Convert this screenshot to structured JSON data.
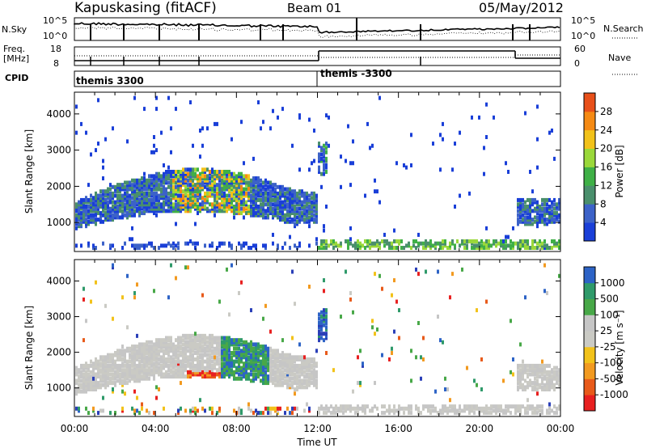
{
  "header": {
    "station": "Kapuskasing (fitACF)",
    "beam": "Beam 01",
    "date": "05/May/2012"
  },
  "top_panels": {
    "nsky_label": "N.Sky",
    "nsky_ticks": [
      "10^5",
      "10^0"
    ],
    "nsearch_label": "N.Search",
    "nsearch_ticks": [
      "10^5",
      "10^0"
    ],
    "freq_label_line1": "Freq.",
    "freq_label_line2": "[MHz]",
    "freq_ticks": [
      "18",
      "8"
    ],
    "nave_label": "Nave",
    "nave_ticks": [
      "60",
      "0"
    ],
    "cpid_label": "CPID",
    "cpid_segments": [
      "themis 3300",
      "themis -3300"
    ]
  },
  "colors": {
    "power": [
      "#1a3fd8",
      "#3c62c8",
      "#4a8f6c",
      "#3fb046",
      "#9ad83a",
      "#f2c21a",
      "#f58a14",
      "#e8501a",
      "#e02020"
    ],
    "velocity": [
      "#e82020",
      "#e85a1a",
      "#f29a20",
      "#f2c21a",
      "#cacac4",
      "#c6c6c6",
      "#48a848",
      "#2f9a6a",
      "#2d63c6",
      "#2a3fb8"
    ]
  },
  "chart_data": [
    {
      "type": "heatmap",
      "name": "power",
      "ylabel": "Slant Range [km]",
      "xlabel": "",
      "yticks": [
        "1000",
        "2000",
        "3000",
        "4000"
      ],
      "ylim": [
        200,
        4600
      ],
      "colorbar_label": "Power [dB]",
      "colorbar_ticks": [
        "4",
        "8",
        "12",
        "16",
        "20",
        "24",
        "28"
      ]
    },
    {
      "type": "heatmap",
      "name": "velocity",
      "ylabel": "Slant Range [km]",
      "xlabel": "Time UT",
      "xticks": [
        "00:00",
        "04:00",
        "08:00",
        "12:00",
        "16:00",
        "20:00",
        "00:00"
      ],
      "yticks": [
        "1000",
        "2000",
        "3000",
        "4000"
      ],
      "ylim": [
        200,
        4600
      ],
      "colorbar_label": "Velocity [m s⁻¹]",
      "colorbar_ticks": [
        "1000",
        "500",
        "100",
        "25",
        "-25",
        "-100",
        "-500",
        "-1000"
      ]
    }
  ]
}
